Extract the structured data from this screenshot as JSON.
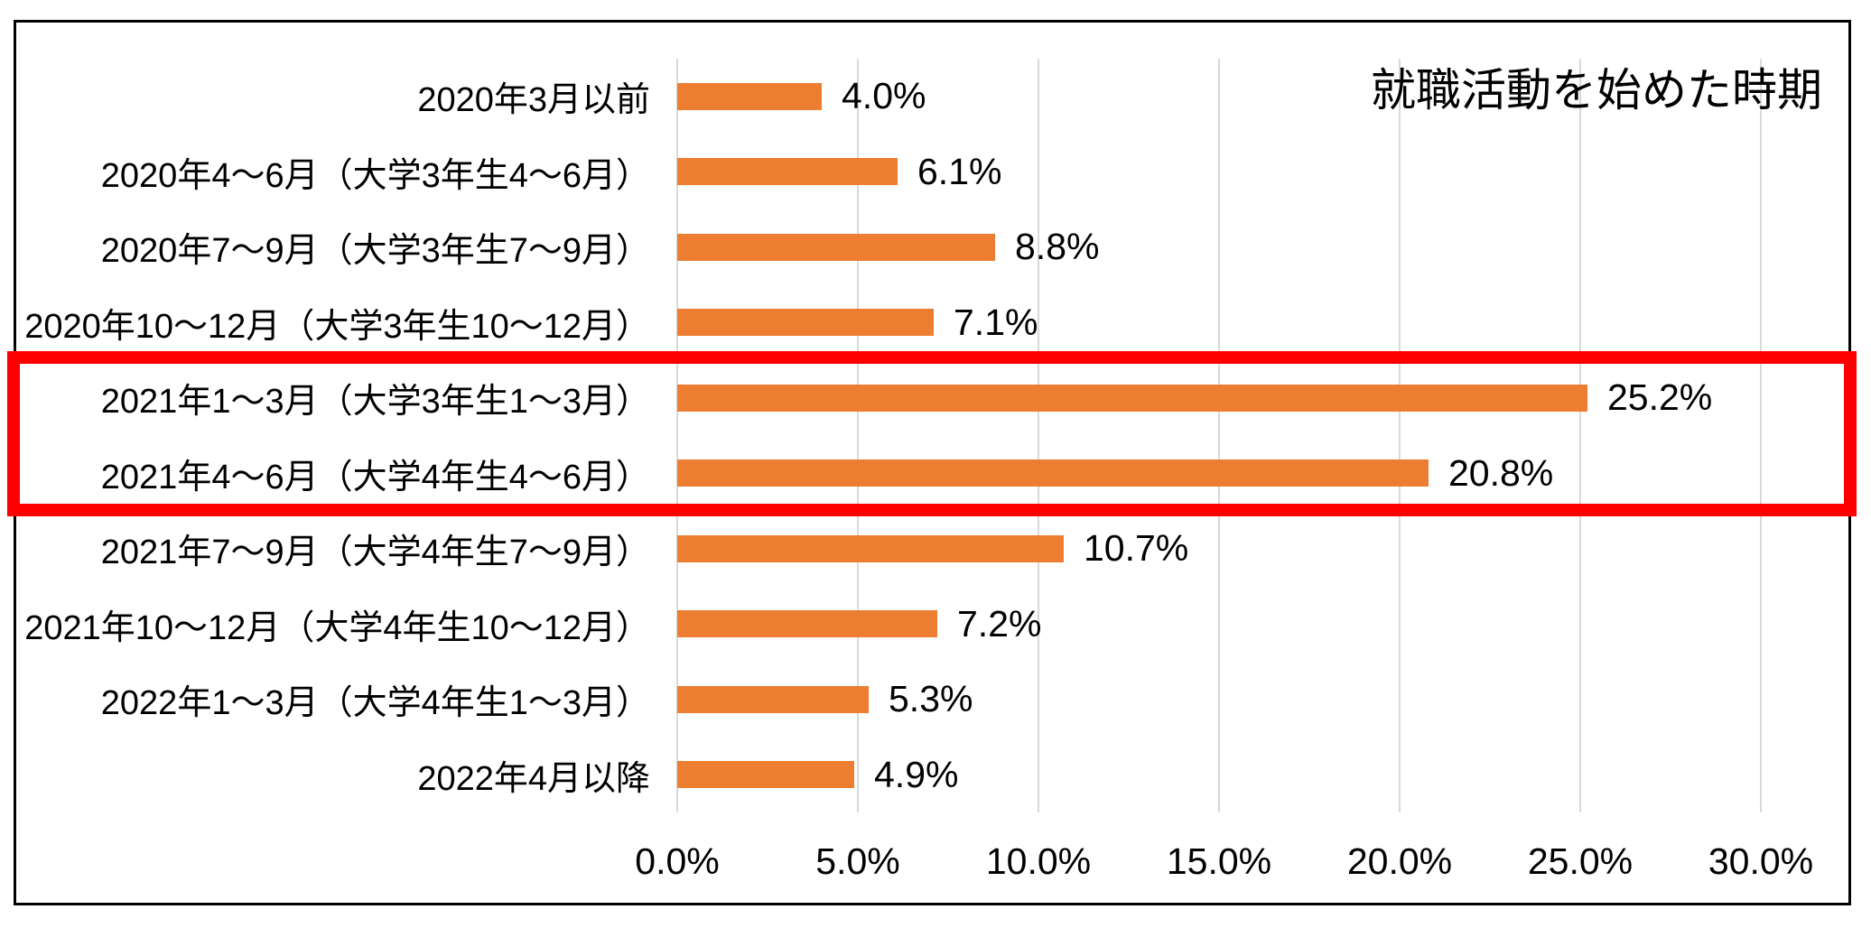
{
  "chart_data": {
    "type": "bar",
    "orientation": "horizontal",
    "title": "就職活動を始めた時期",
    "categories": [
      "2020年3月以前",
      "2020年4～6月（大学3年生4～6月）",
      "2020年7～9月（大学3年生7～9月）",
      "2020年10～12月（大学3年生10～12月）",
      "2021年1～3月（大学3年生1～3月）",
      "2021年4～6月（大学4年生4～6月）",
      "2021年7～9月（大学4年生7～9月）",
      "2021年10～12月（大学4年生10～12月）",
      "2022年1～3月（大学4年生1～3月）",
      "2022年4月以降"
    ],
    "values": [
      4.0,
      6.1,
      8.8,
      7.1,
      25.2,
      20.8,
      10.7,
      7.2,
      5.3,
      4.9
    ],
    "value_labels": [
      "4.0%",
      "6.1%",
      "8.8%",
      "7.1%",
      "25.2%",
      "20.8%",
      "10.7%",
      "7.2%",
      "5.3%",
      "4.9%"
    ],
    "xlabel": "",
    "ylabel": "",
    "x_axis": {
      "min": 0,
      "max": 30,
      "tick_step": 5,
      "format": "percent",
      "tick_labels": [
        "0.0%",
        "5.0%",
        "10.0%",
        "15.0%",
        "20.0%",
        "25.0%",
        "30.0%"
      ]
    },
    "legend": "none",
    "grid": "vertical-only",
    "bar_color": "#ed7d31",
    "gridline_color": "#d9d9d9",
    "text_color": "#000000",
    "frame_border_color": "#000000",
    "highlight_box": {
      "color": "#ff0000",
      "row_indices": [
        4,
        5
      ],
      "highlighted_categories": [
        "2021年1～3月（大学3年生1～3月）",
        "2021年4～6月（大学4年生4～6月）"
      ],
      "highlighted_values": [
        25.2,
        20.8
      ]
    }
  }
}
